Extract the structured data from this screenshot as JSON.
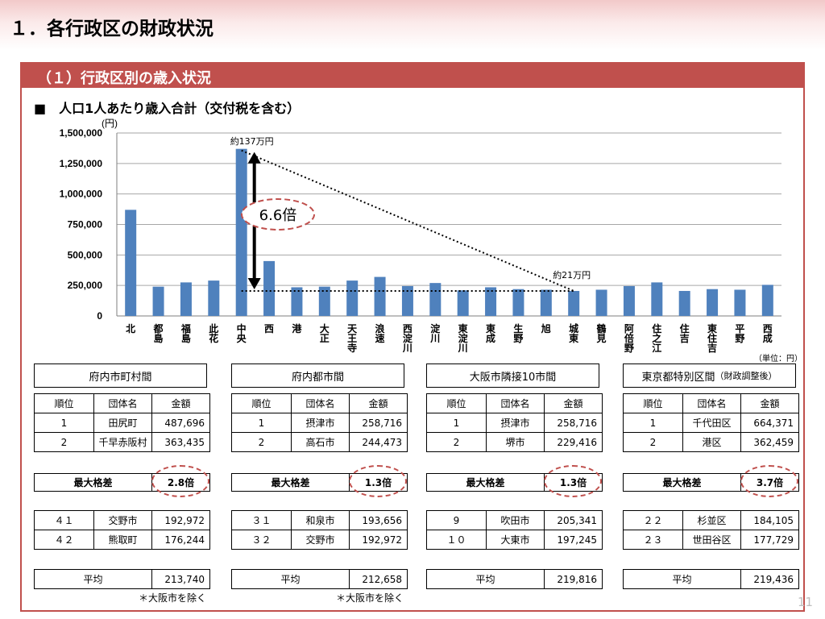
{
  "page_title": "１．各行政区の財政状況",
  "section_title": "（１）行政区別の歳入状況",
  "chart_title": "■　人口1人あたり歳入合計（交付税を含む）",
  "unit_label": "(円)",
  "unit_note": "（単位：円）",
  "page_number": "11",
  "colors": {
    "bar": "#4f81bd",
    "accent": "#c0504d"
  },
  "chart_data": {
    "type": "bar",
    "title": "人口1人あたり歳入合計（交付税を含む）",
    "ylabel": "(円)",
    "ylim": [
      0,
      1500000
    ],
    "yticks": [
      0,
      250000,
      500000,
      750000,
      1000000,
      1250000,
      1500000
    ],
    "ytick_labels": [
      "0",
      "250,000",
      "500,000",
      "750,000",
      "1,000,000",
      "1,250,000",
      "1,500,000"
    ],
    "grid": true,
    "categories": [
      "北",
      "都島",
      "福島",
      "此花",
      "中央",
      "西",
      "港",
      "大正",
      "天王寺",
      "浪速",
      "西淀川",
      "淀川",
      "東淀川",
      "東成",
      "生野",
      "旭",
      "城東",
      "鶴見",
      "阿倍野",
      "住之江",
      "住吉",
      "東住吉",
      "平野",
      "西成"
    ],
    "values": [
      870000,
      240000,
      275000,
      290000,
      1370000,
      450000,
      235000,
      240000,
      290000,
      320000,
      245000,
      270000,
      210000,
      235000,
      220000,
      215000,
      205000,
      215000,
      245000,
      275000,
      205000,
      220000,
      215000,
      255000
    ],
    "annotations": {
      "max_label": "約137万円",
      "min_label": "約21万円",
      "ratio_label": "6.6倍"
    }
  },
  "tables": [
    {
      "group_label": "府内市町村間",
      "group_sub": "",
      "headers": [
        "順位",
        "団体名",
        "金額"
      ],
      "top": [
        [
          "1",
          "田尻町",
          "487,696"
        ],
        [
          "2",
          "千早赤阪村",
          "363,435"
        ]
      ],
      "max_diff_label": "最大格差",
      "max_diff_value": "2.8倍",
      "bottom": [
        [
          "４１",
          "交野市",
          "192,972"
        ],
        [
          "４２",
          "熊取町",
          "176,244"
        ]
      ],
      "avg_label": "平均",
      "avg_value": "213,740",
      "footnote": "＊大阪市を除く"
    },
    {
      "group_label": "府内都市間",
      "group_sub": "",
      "headers": [
        "順位",
        "団体名",
        "金額"
      ],
      "top": [
        [
          "1",
          "摂津市",
          "258,716"
        ],
        [
          "2",
          "高石市",
          "244,473"
        ]
      ],
      "max_diff_label": "最大格差",
      "max_diff_value": "1.3倍",
      "bottom": [
        [
          "３１",
          "和泉市",
          "193,656"
        ],
        [
          "３２",
          "交野市",
          "192,972"
        ]
      ],
      "avg_label": "平均",
      "avg_value": "212,658",
      "footnote": "＊大阪市を除く"
    },
    {
      "group_label": "大阪市隣接10市間",
      "group_sub": "",
      "headers": [
        "順位",
        "団体名",
        "金額"
      ],
      "top": [
        [
          "1",
          "摂津市",
          "258,716"
        ],
        [
          "2",
          "堺市",
          "229,416"
        ]
      ],
      "max_diff_label": "最大格差",
      "max_diff_value": "1.3倍",
      "bottom": [
        [
          "9",
          "吹田市",
          "205,341"
        ],
        [
          "１０",
          "大東市",
          "197,245"
        ]
      ],
      "avg_label": "平均",
      "avg_value": "219,816",
      "footnote": ""
    },
    {
      "group_label": "東京都特別区間",
      "group_sub": "（財政調整後）",
      "headers": [
        "順位",
        "団体名",
        "金額"
      ],
      "top": [
        [
          "1",
          "千代田区",
          "664,371"
        ],
        [
          "2",
          "港区",
          "362,459"
        ]
      ],
      "max_diff_label": "最大格差",
      "max_diff_value": "3.7倍",
      "bottom": [
        [
          "２２",
          "杉並区",
          "184,105"
        ],
        [
          "２３",
          "世田谷区",
          "177,729"
        ]
      ],
      "avg_label": "平均",
      "avg_value": "219,436",
      "footnote": ""
    }
  ]
}
